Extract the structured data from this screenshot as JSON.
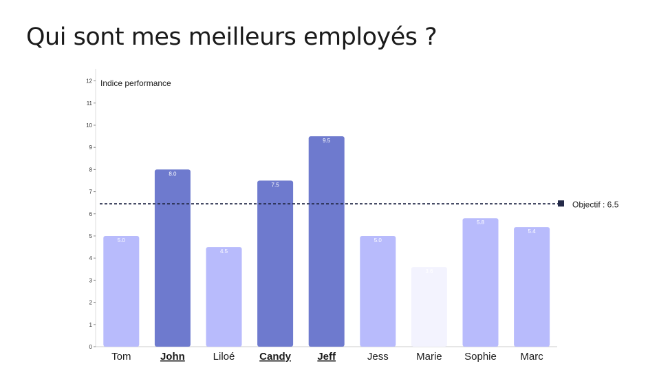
{
  "title": "Qui sont mes meilleurs employés ?",
  "chart_data": {
    "type": "bar",
    "ylabel": "Indice performance",
    "ylim": [
      0,
      12
    ],
    "yticks": [
      0,
      1,
      2,
      3,
      4,
      5,
      6,
      7,
      8,
      9,
      10,
      11,
      12
    ],
    "categories": [
      "Tom",
      "John",
      "Liloé",
      "Candy",
      "Jeff",
      "Jess",
      "Marie",
      "Sophie",
      "Marc"
    ],
    "values": [
      5.0,
      8.0,
      4.5,
      7.5,
      9.5,
      5.0,
      3.6,
      5.8,
      5.4
    ],
    "value_labels": [
      "5.0",
      "8.0",
      "4.5",
      "7.5",
      "9.5",
      "5.0",
      "3.6",
      "5.8",
      "5.4"
    ],
    "highlighted": [
      "John",
      "Candy",
      "Jeff"
    ],
    "bar_colors": [
      "#b8bbfc",
      "#6e7ace",
      "#b8bbfc",
      "#6e7ace",
      "#6e7ace",
      "#b8bbfc",
      "#f3f3fe",
      "#b8bbfc",
      "#b8bbfc"
    ],
    "objective": {
      "value": 6.45,
      "label": "Objectif : 6.5",
      "color": "#242a48"
    }
  }
}
